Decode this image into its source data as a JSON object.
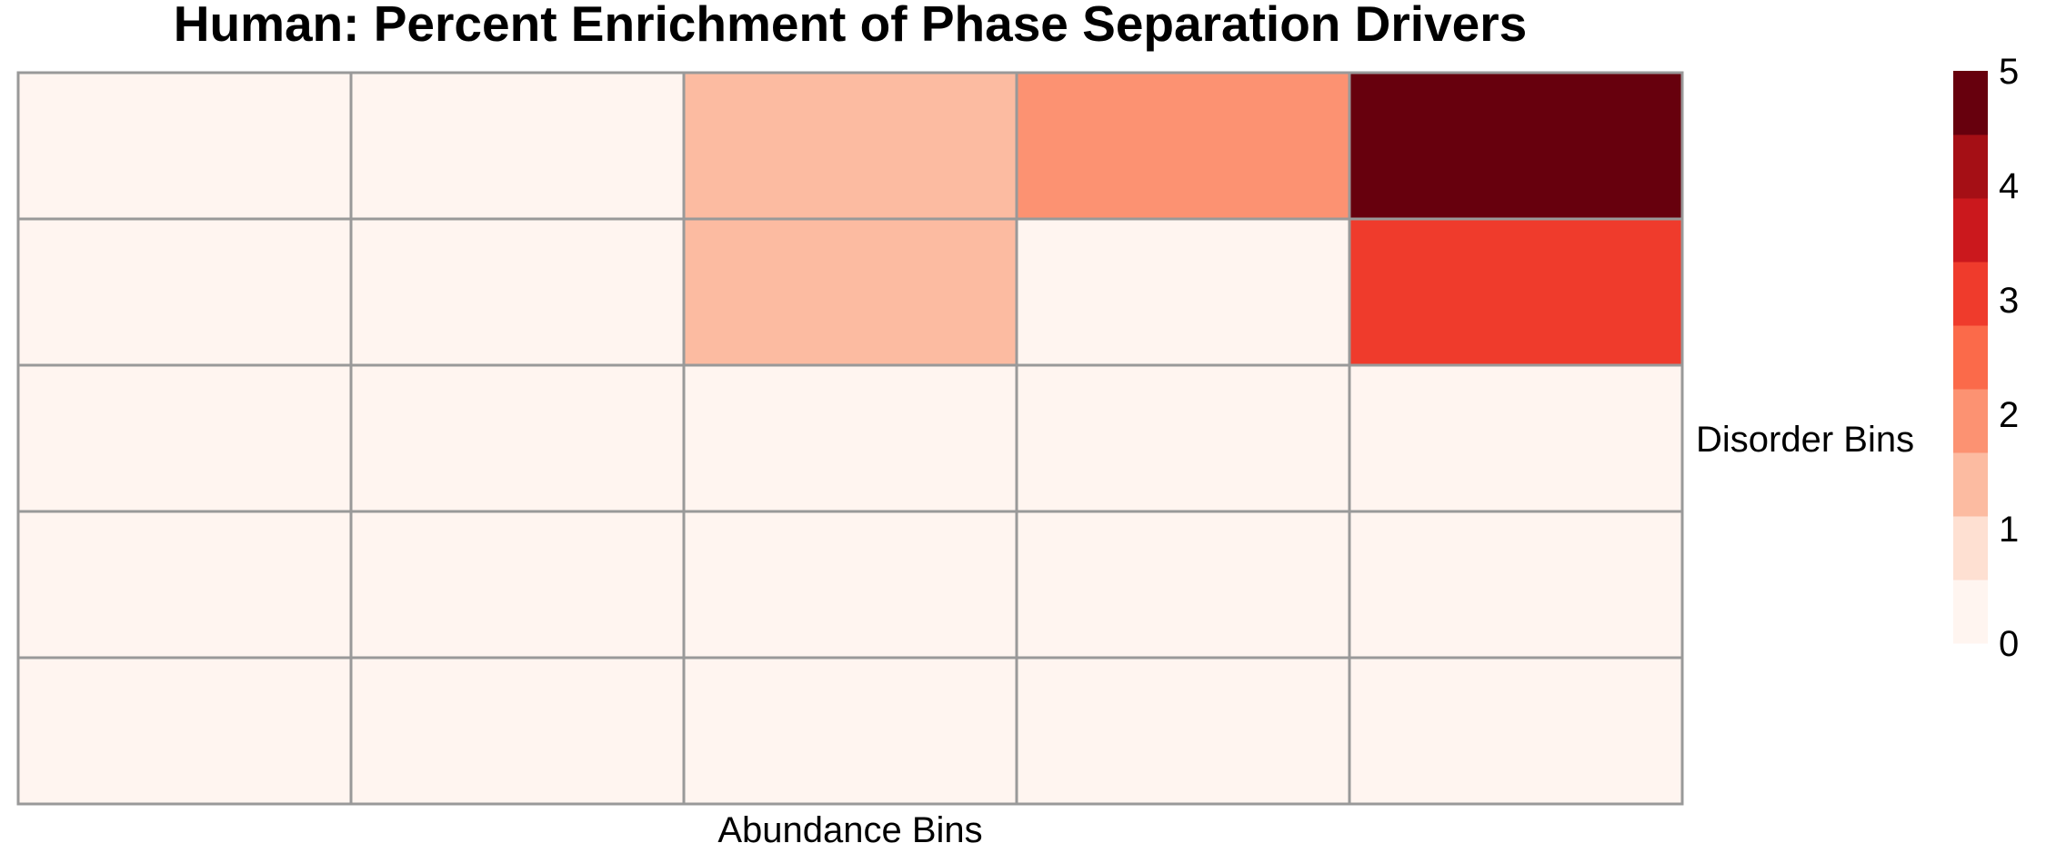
{
  "chart_data": {
    "type": "heatmap",
    "title": "Human: Percent Enrichment of Phase Separation Drivers",
    "xlabel": "Abundance Bins",
    "ylabel": "Disorder Bins",
    "n_cols": 5,
    "n_rows": 5,
    "values": [
      [
        0,
        0,
        1,
        2,
        5
      ],
      [
        0,
        0,
        1,
        0,
        3
      ],
      [
        0,
        0,
        0,
        0,
        0
      ],
      [
        0,
        0,
        0,
        0,
        0
      ],
      [
        0,
        0,
        0,
        0,
        0
      ]
    ],
    "value_range": [
      0,
      5
    ],
    "legend": {
      "position": "right",
      "ticks": [
        "0",
        "1",
        "2",
        "3",
        "4",
        "5"
      ],
      "colors": [
        "#FFF5F0",
        "#FEE0D2",
        "#FCBBA1",
        "#FC9272",
        "#FB6A4A",
        "#EF3B2C",
        "#CB181D",
        "#A50F15",
        "#67000D"
      ]
    },
    "grid_color": "#999999"
  }
}
